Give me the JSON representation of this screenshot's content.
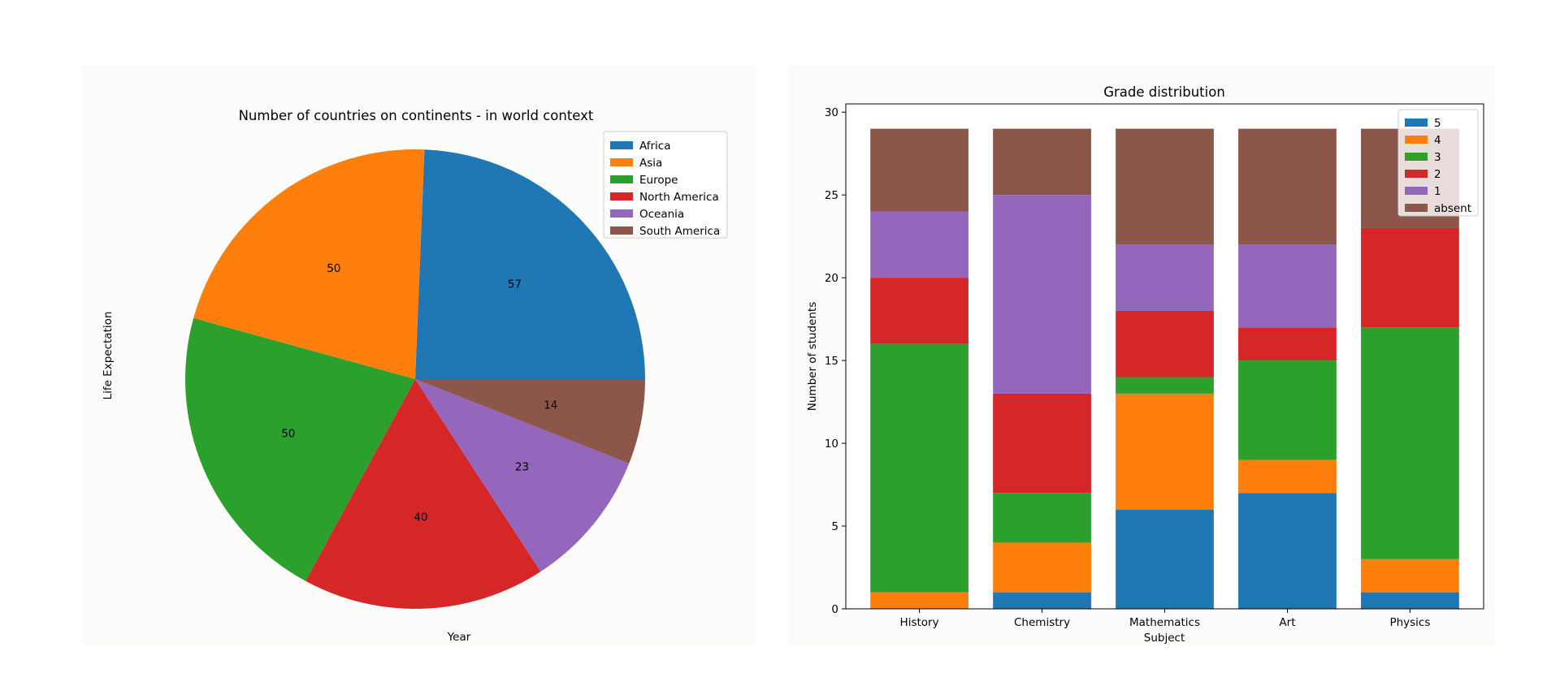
{
  "colors": {
    "blue": "#1f77b4",
    "orange": "#ff7f0e",
    "green": "#2ca02c",
    "red": "#d62728",
    "purple": "#9467bd",
    "brown": "#8c564b",
    "panel_bg": "#fcfdfa"
  },
  "chart_data": [
    {
      "type": "pie",
      "title": "Number of countries on continents - in world context",
      "xlabel": "Year",
      "ylabel": "Life Expectation",
      "labels": [
        "Africa",
        "Asia",
        "Europe",
        "North America",
        "Oceania",
        "South America"
      ],
      "values": [
        57,
        50,
        50,
        40,
        23,
        14
      ],
      "colors": [
        "#1f77b4",
        "#ff7f0e",
        "#2ca02c",
        "#d62728",
        "#9467bd",
        "#8c564b"
      ],
      "legend": "top-right"
    },
    {
      "type": "bar",
      "stacked": true,
      "title": "Grade distribution",
      "xlabel": "Subject",
      "ylabel": "Number of students",
      "categories": [
        "History",
        "Chemistry",
        "Mathematics",
        "Art",
        "Physics"
      ],
      "series": [
        {
          "name": "5",
          "color": "#1f77b4",
          "values": [
            0,
            1,
            6,
            7,
            1
          ]
        },
        {
          "name": "4",
          "color": "#ff7f0e",
          "values": [
            1,
            3,
            7,
            2,
            2
          ]
        },
        {
          "name": "3",
          "color": "#2ca02c",
          "values": [
            15,
            3,
            1,
            6,
            14
          ]
        },
        {
          "name": "2",
          "color": "#d62728",
          "values": [
            4,
            6,
            4,
            2,
            6
          ]
        },
        {
          "name": "1",
          "color": "#9467bd",
          "values": [
            4,
            12,
            4,
            5,
            0
          ]
        },
        {
          "name": "absent",
          "color": "#8c564b",
          "values": [
            5,
            4,
            7,
            7,
            6
          ]
        }
      ],
      "ylim": [
        0,
        30.5
      ],
      "yticks": [
        0,
        5,
        10,
        15,
        20,
        25,
        30
      ],
      "legend": "top-right"
    }
  ]
}
